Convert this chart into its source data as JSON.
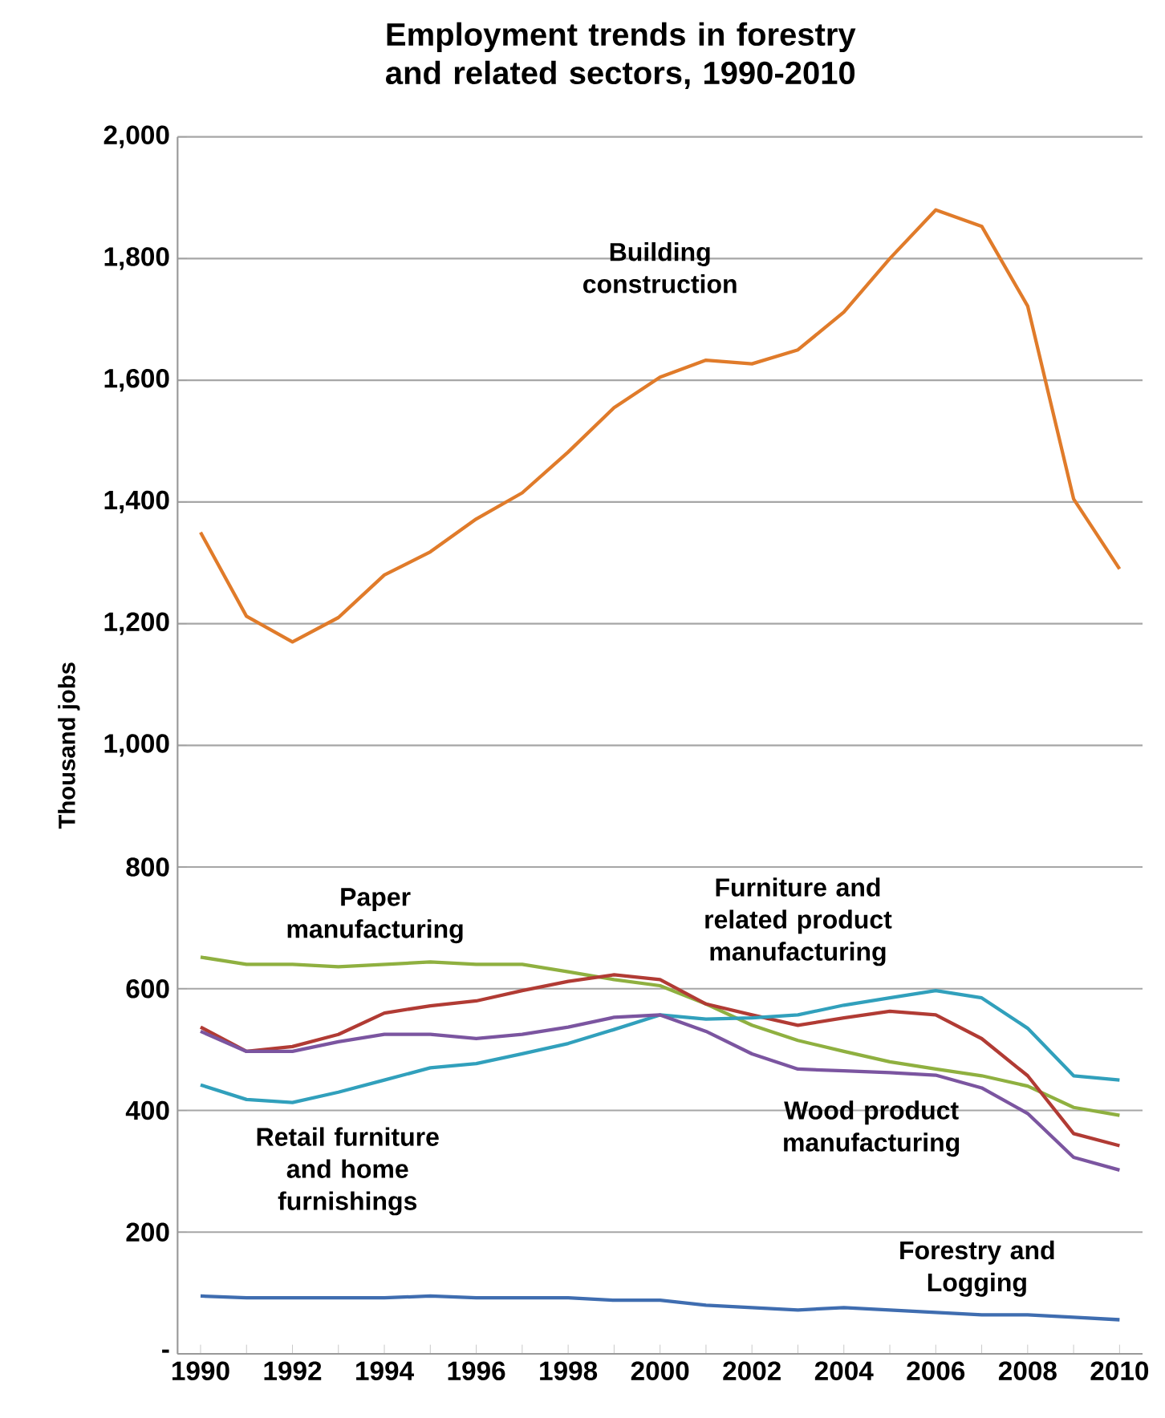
{
  "chart_data": {
    "type": "line",
    "title": "Employment trends in forestry and related sectors, 1990-2010",
    "ylabel": "Thousand jobs",
    "categories": [
      "1990",
      null,
      "1992",
      null,
      "1994",
      null,
      "1996",
      null,
      "1998",
      null,
      "2000",
      null,
      "2002",
      null,
      "2004",
      null,
      "2006",
      null,
      "2008",
      null,
      "2010"
    ],
    "ylim": [
      0,
      2000
    ],
    "yticks": [
      {
        "value": 0,
        "label": "-"
      },
      200,
      400,
      600,
      800,
      {
        "value": 1000,
        "label": "1,000"
      },
      {
        "value": 1200,
        "label": "1,200"
      },
      {
        "value": 1400,
        "label": "1,400"
      },
      {
        "value": 1600,
        "label": "1,600"
      },
      {
        "value": 1800,
        "label": "1,800"
      },
      {
        "value": 2000,
        "label": "2,000"
      }
    ],
    "grid": "y",
    "marker": "none",
    "line_style": "solid",
    "series": [
      {
        "name": "Building construction",
        "color": "#e07b2a",
        "values": [
          1350,
          1212,
          1170,
          1210,
          1280,
          1318,
          1372,
          1415,
          1482,
          1555,
          1605,
          1633,
          1627,
          1650,
          1712,
          1800,
          1880,
          1853,
          1722,
          1405,
          1290
        ]
      },
      {
        "name": "Paper manufacturing",
        "color": "#8fb040",
        "values": [
          652,
          640,
          640,
          636,
          640,
          644,
          640,
          640,
          628,
          615,
          605,
          575,
          540,
          515,
          497,
          480,
          468,
          457,
          440,
          405,
          392
        ]
      },
      {
        "name": "Furniture and related product manufacturing",
        "color": "#b13b34",
        "values": [
          537,
          497,
          505,
          525,
          560,
          572,
          580,
          597,
          612,
          623,
          615,
          575,
          557,
          540,
          552,
          563,
          557,
          518,
          457,
          362,
          342
        ]
      },
      {
        "name": "Retail furniture and home furnishings",
        "color": "#31a0bc",
        "values": [
          442,
          418,
          413,
          430,
          450,
          470,
          477,
          493,
          510,
          533,
          557,
          550,
          552,
          557,
          573,
          585,
          597,
          585,
          535,
          457,
          450
        ]
      },
      {
        "name": "Wood product manufacturing",
        "color": "#7b55a0",
        "values": [
          530,
          497,
          497,
          513,
          525,
          525,
          518,
          525,
          537,
          553,
          557,
          530,
          493,
          468,
          465,
          462,
          458,
          437,
          395,
          323,
          302
        ]
      },
      {
        "name": "Forestry and Logging",
        "color": "#3f6db0",
        "values": [
          95,
          92,
          92,
          92,
          92,
          95,
          92,
          92,
          92,
          88,
          88,
          80,
          76,
          72,
          76,
          72,
          68,
          64,
          64,
          60,
          56
        ]
      }
    ]
  }
}
